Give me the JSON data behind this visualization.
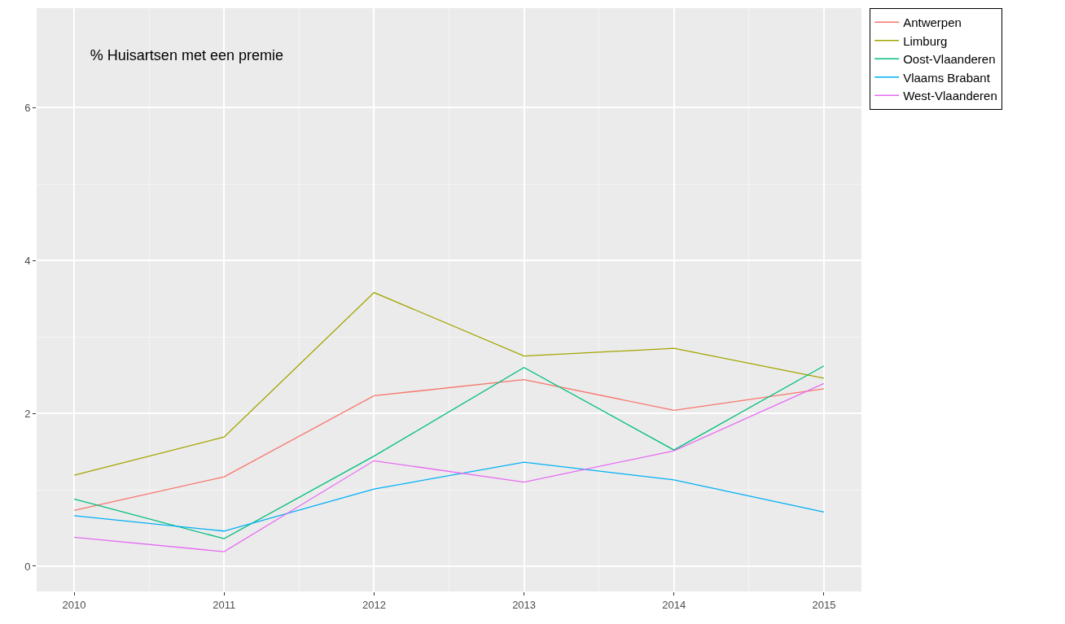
{
  "chart_data": {
    "type": "line",
    "title": "% Huisartsen met een premie",
    "x": [
      2010,
      2011,
      2012,
      2013,
      2014,
      2015
    ],
    "series": [
      {
        "name": "Antwerpen",
        "color": "#f8766d",
        "values": [
          0.73,
          1.17,
          2.23,
          2.44,
          2.04,
          2.32
        ]
      },
      {
        "name": "Limburg",
        "color": "#a3a500",
        "values": [
          1.19,
          1.69,
          3.58,
          2.75,
          2.85,
          2.46
        ]
      },
      {
        "name": "Oost-Vlaanderen",
        "color": "#00bf7d",
        "values": [
          0.88,
          0.36,
          1.44,
          2.6,
          1.52,
          2.62
        ]
      },
      {
        "name": "Vlaams Brabant",
        "color": "#00b0f6",
        "values": [
          0.66,
          0.46,
          1.01,
          1.36,
          1.13,
          0.71
        ]
      },
      {
        "name": "West-Vlaanderen",
        "color": "#e76bf3",
        "values": [
          0.38,
          0.19,
          1.38,
          1.1,
          1.51,
          2.39
        ]
      }
    ],
    "xlim": [
      2009.75,
      2015.25
    ],
    "xticks": [
      2010,
      2011,
      2012,
      2013,
      2014,
      2015
    ],
    "ylim": [
      -0.33,
      7.3
    ],
    "yticks": [
      0,
      2,
      4,
      6
    ],
    "grid": true,
    "legend": "top right",
    "marker": "none",
    "line_style": "solid"
  }
}
